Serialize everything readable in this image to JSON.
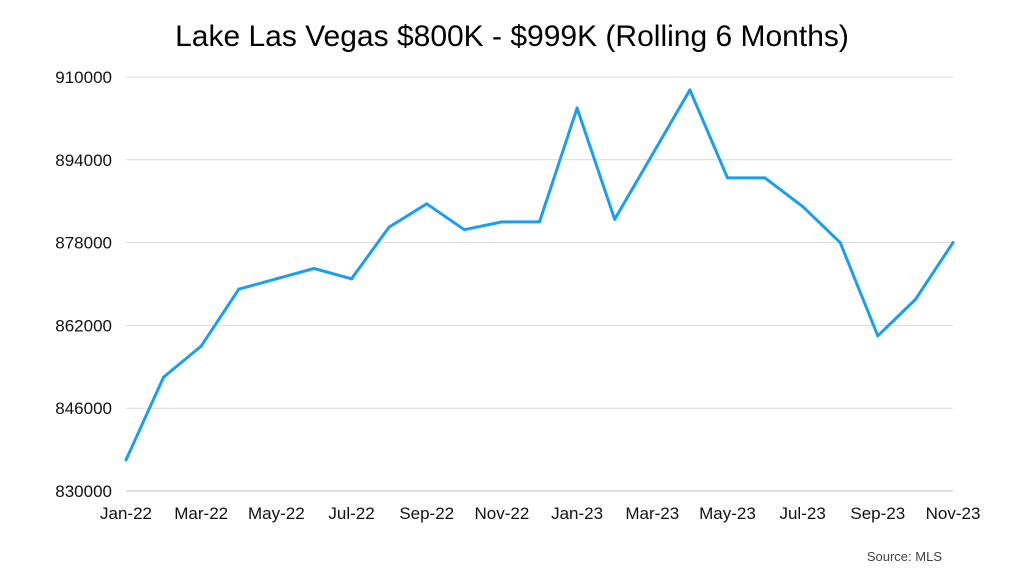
{
  "chart_data": {
    "type": "line",
    "title": "Lake Las Vegas $800K - $999K (Rolling 6 Months)",
    "xlabel": "",
    "ylabel": "",
    "x": [
      "Jan-22",
      "Feb-22",
      "Mar-22",
      "Apr-22",
      "May-22",
      "Jun-22",
      "Jul-22",
      "Aug-22",
      "Sep-22",
      "Oct-22",
      "Nov-22",
      "Dec-22",
      "Jan-23",
      "Feb-23",
      "Mar-23",
      "Apr-23",
      "May-23",
      "Jun-23",
      "Jul-23",
      "Aug-23",
      "Sep-23",
      "Oct-23",
      "Nov-23"
    ],
    "x_tick_labels": [
      "Jan-22",
      "Mar-22",
      "May-22",
      "Jul-22",
      "Sep-22",
      "Nov-22",
      "Jan-23",
      "Mar-23",
      "May-23",
      "Jul-23",
      "Sep-23",
      "Nov-23"
    ],
    "series": [
      {
        "values": [
          836000,
          852000,
          858000,
          869000,
          871000,
          873000,
          871000,
          881000,
          885500,
          880500,
          882000,
          882000,
          904000,
          882500,
          895000,
          907500,
          890500,
          890500,
          885000,
          878000,
          860000,
          867000,
          878000
        ]
      }
    ],
    "ylim": [
      830000,
      910000
    ],
    "y_ticks": [
      830000,
      846000,
      862000,
      878000,
      894000,
      910000
    ],
    "grid": true,
    "line_color": "#1a9ff0"
  },
  "source_text": "Source: MLS"
}
